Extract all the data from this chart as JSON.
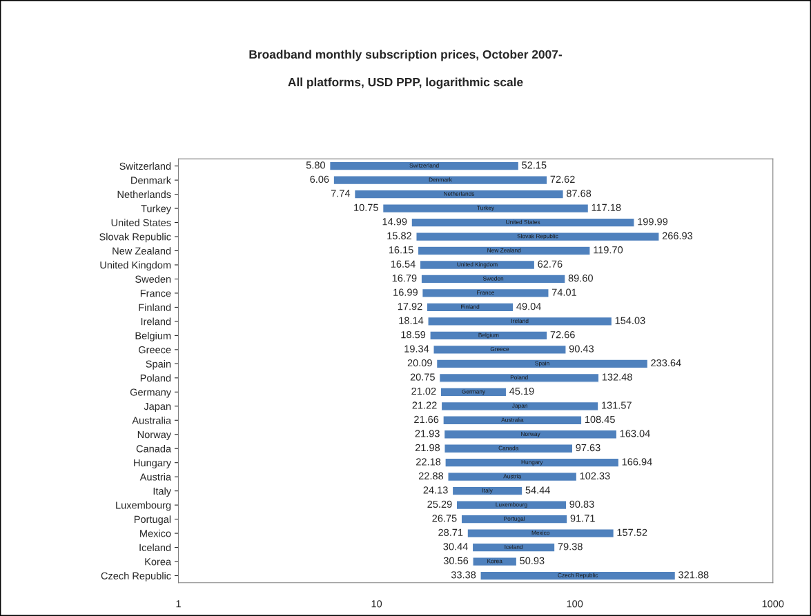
{
  "chart_data": {
    "type": "bar",
    "orientation": "horizontal",
    "title": "Broadband monthly subscription prices, October 2007-",
    "subtitle": "All platforms, USD PPP, logarithmic scale",
    "categories": [
      "Switzerland",
      "Denmark",
      "Netherlands",
      "Turkey",
      "United States",
      "Slovak Republic",
      "New Zealand",
      "United Kingdom",
      "Sweden",
      "France",
      "Finland",
      "Ireland",
      "Belgium",
      "Greece",
      "Spain",
      "Poland",
      "Germany",
      "Japan",
      "Australia",
      "Norway",
      "Canada",
      "Hungary",
      "Austria",
      "Italy",
      "Luxembourg",
      "Portugal",
      "Mexico",
      "Iceland",
      "Korea",
      "Czech Republic"
    ],
    "base": [
      5.8,
      6.06,
      7.74,
      10.75,
      14.99,
      15.82,
      16.15,
      16.54,
      16.79,
      16.99,
      17.92,
      18.14,
      18.59,
      19.34,
      20.09,
      20.75,
      21.02,
      21.22,
      21.66,
      21.93,
      21.98,
      22.18,
      22.88,
      24.13,
      25.29,
      26.75,
      28.71,
      30.44,
      30.56,
      33.38
    ],
    "values": [
      46.35,
      66.56,
      79.94,
      106.43,
      185.0,
      251.11,
      103.55,
      46.22,
      72.81,
      57.02,
      31.12,
      135.89,
      54.07,
      71.09,
      213.55,
      111.73,
      24.17,
      110.35,
      86.79,
      141.11,
      75.65,
      144.76,
      79.45,
      30.31,
      65.54,
      64.96,
      128.81,
      48.94,
      20.37,
      288.5
    ],
    "value_labels": [
      "52.15",
      "72.62",
      "87.68",
      "117.18",
      "199.99",
      "266.93",
      "119.70",
      "62.76",
      "89.60",
      "74.01",
      "49.04",
      "154.03",
      "72.66",
      "90.43",
      "233.64",
      "132.48",
      "45.19",
      "131.57",
      "108.45",
      "163.04",
      "97.63",
      "166.94",
      "102.33",
      "54.44",
      "90.83",
      "91.71",
      "157.52",
      "79.38",
      "50.93",
      "321.88"
    ],
    "color": "#4f81bd",
    "annotations": [
      {
        "text": "5.80",
        "x": 5.8,
        "y": "Switzerland"
      },
      {
        "text": "6.06",
        "x": 6.06,
        "y": "Denmark"
      },
      {
        "text": "7.74",
        "x": 7.74,
        "y": "Netherlands"
      },
      {
        "text": "10.75",
        "x": 10.75,
        "y": "Turkey"
      },
      {
        "text": "14.99",
        "x": 14.99,
        "y": "United States"
      },
      {
        "text": "15.82",
        "x": 15.82,
        "y": "Slovak Republic"
      },
      {
        "text": "16.15",
        "x": 16.15,
        "y": "New Zealand"
      },
      {
        "text": "16.54",
        "x": 16.54,
        "y": "United Kingdom"
      },
      {
        "text": "16.79",
        "x": 16.79,
        "y": "Sweden"
      },
      {
        "text": "16.99",
        "x": 16.99,
        "y": "France"
      },
      {
        "text": "17.92",
        "x": 17.92,
        "y": "Finland"
      },
      {
        "text": "18.14",
        "x": 18.14,
        "y": "Ireland"
      },
      {
        "text": "18.59",
        "x": 18.59,
        "y": "Belgium"
      },
      {
        "text": "19.34",
        "x": 19.34,
        "y": "Greece"
      },
      {
        "text": "20.09",
        "x": 20.09,
        "y": "Spain"
      },
      {
        "text": "20.75",
        "x": 20.75,
        "y": "Poland"
      },
      {
        "text": "21.02",
        "x": 21.02,
        "y": "Germany"
      },
      {
        "text": "21.22",
        "x": 21.22,
        "y": "Japan"
      },
      {
        "text": "21.66",
        "x": 21.66,
        "y": "Australia"
      },
      {
        "text": "21.93",
        "x": 21.93,
        "y": "Norway"
      },
      {
        "text": "21.98",
        "x": 21.98,
        "y": "Canada"
      },
      {
        "text": "22.18",
        "x": 22.18,
        "y": "Hungary"
      },
      {
        "text": "22.88",
        "x": 22.88,
        "y": "Austria"
      },
      {
        "text": "24.13",
        "x": 24.13,
        "y": "Italy"
      },
      {
        "text": "25.29",
        "x": 25.29,
        "y": "Luxembourg"
      },
      {
        "text": "26.75",
        "x": 26.75,
        "y": "Portugal"
      },
      {
        "text": "28.71",
        "x": 28.71,
        "y": "Mexico"
      },
      {
        "text": "30.44",
        "x": 30.44,
        "y": "Iceland"
      },
      {
        "text": "30.56",
        "x": 30.56,
        "y": "Korea"
      },
      {
        "text": "33.38",
        "x": 33.38,
        "y": "Czech Republic"
      }
    ],
    "log": "x",
    "xlim": [
      1,
      1000
    ],
    "xticks": [
      1,
      10,
      100,
      1000
    ],
    "grid": false
  }
}
